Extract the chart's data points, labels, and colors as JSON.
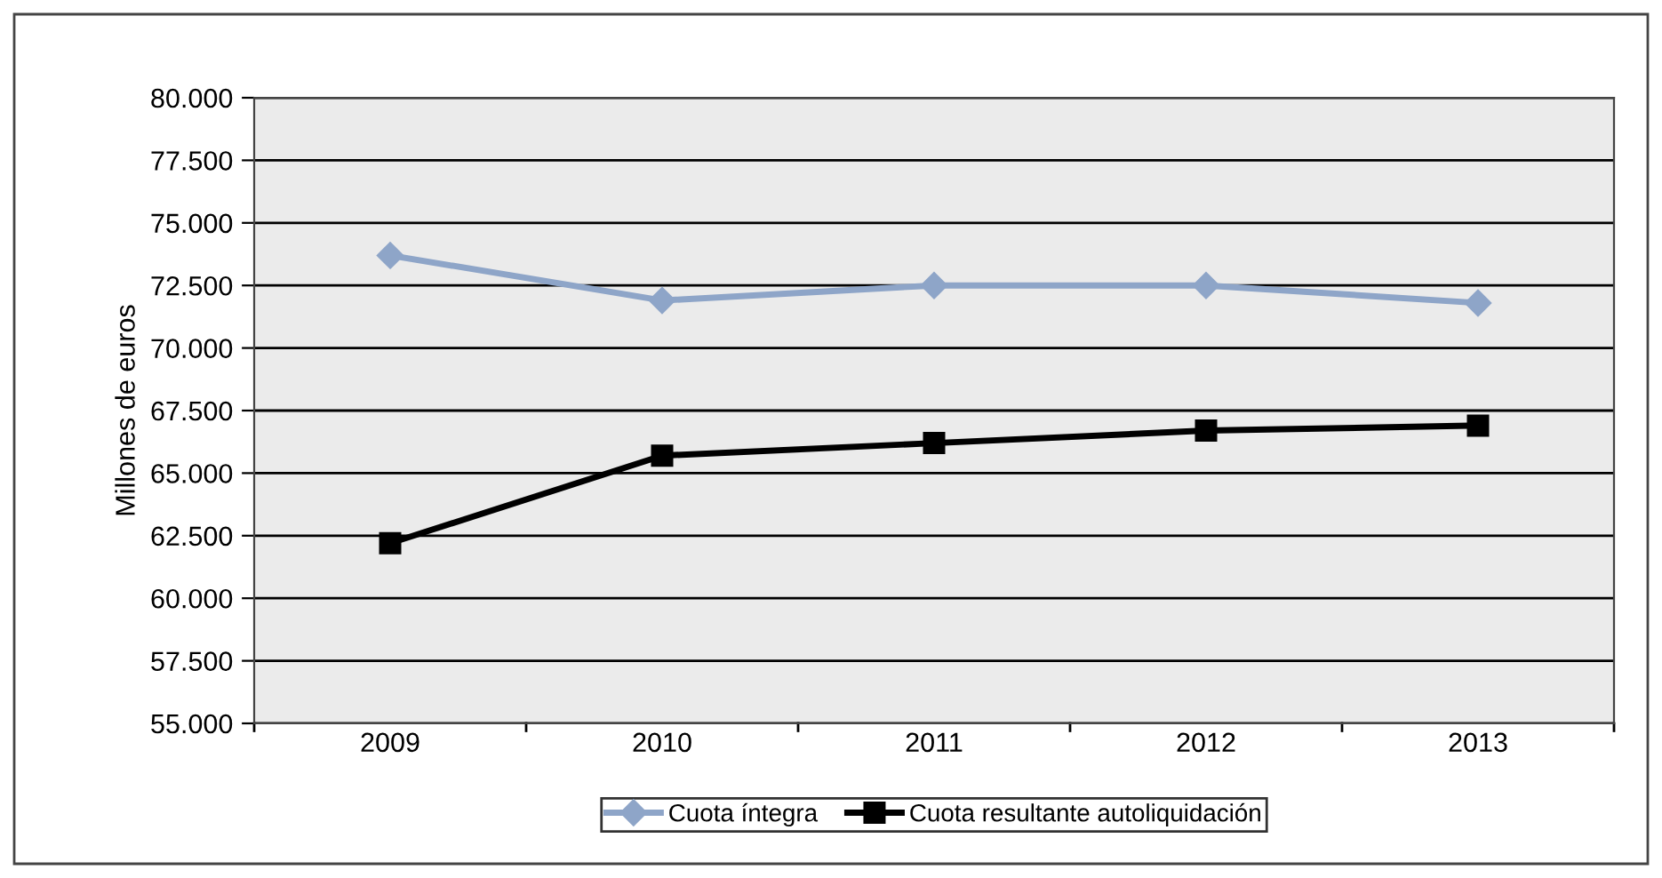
{
  "chart_data": {
    "type": "line",
    "ylabel": "Millones de euros",
    "categories": [
      "2009",
      "2010",
      "2011",
      "2012",
      "2013"
    ],
    "series": [
      {
        "name": "Cuota íntegra",
        "color": "#8ea5c8",
        "marker": "diamond",
        "values": [
          73700,
          71900,
          72500,
          72500,
          71800
        ]
      },
      {
        "name": "Cuota resultante autoliquidación",
        "color": "#000000",
        "marker": "square",
        "values": [
          62200,
          65700,
          66200,
          66700,
          66900
        ]
      }
    ],
    "ylim": [
      55000,
      80000
    ],
    "yticks": [
      {
        "value": 55000,
        "label": "55.000"
      },
      {
        "value": 57500,
        "label": "57.500"
      },
      {
        "value": 60000,
        "label": "60.000"
      },
      {
        "value": 62500,
        "label": "62.500"
      },
      {
        "value": 65000,
        "label": "65.000"
      },
      {
        "value": 67500,
        "label": "67.500"
      },
      {
        "value": 70000,
        "label": "70.000"
      },
      {
        "value": 72500,
        "label": "72.500"
      },
      {
        "value": 75000,
        "label": "75.000"
      },
      {
        "value": 77500,
        "label": "77.500"
      },
      {
        "value": 80000,
        "label": "80.000"
      }
    ],
    "grid": "y",
    "legend": "bottom",
    "line_style": "solid"
  }
}
